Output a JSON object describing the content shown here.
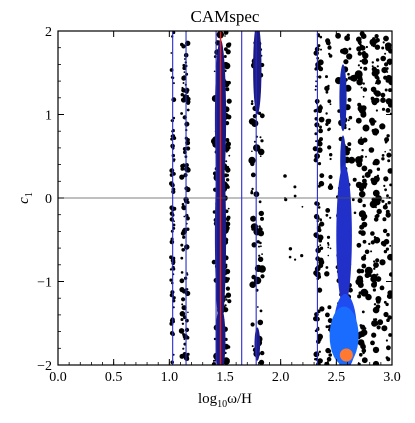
{
  "chart_data": {
    "type": "scatter",
    "title": "CAMspec",
    "xlabel_parts": {
      "pre": "log",
      "sub": "10",
      "post": "ω/H"
    },
    "ylabel_parts": {
      "pre": "c",
      "sub": "1"
    },
    "xlim": [
      0.0,
      3.0
    ],
    "ylim": [
      -2,
      2
    ],
    "xticks": [
      0.0,
      0.5,
      1.0,
      1.5,
      2.0,
      2.5,
      3.0
    ],
    "xtick_labels": [
      "0.0",
      "0.5",
      "1.0",
      "1.5",
      "2.0",
      "2.5",
      "3.0"
    ],
    "yticks": [
      -2,
      -1,
      0,
      1,
      2
    ],
    "ytick_labels": [
      "−2",
      "−1",
      "0",
      "1",
      "2"
    ],
    "zero_line_y": 0,
    "best_fit_x": 1.46,
    "blue_lines_x": [
      1.03,
      1.15,
      1.42,
      1.65,
      1.78,
      2.33
    ],
    "colors": {
      "blue_line": "#2a2ad0",
      "red_line": "#e02020",
      "marker": "#ff7a30",
      "frame": "#000000"
    },
    "marker": {
      "x": 2.59,
      "y": -1.88
    },
    "blobs": [
      {
        "x": 1.46,
        "y": 0.95,
        "w": 0.1,
        "h": 1.9,
        "color": "#1a1a80"
      },
      {
        "x": 1.46,
        "y": -0.45,
        "w": 0.1,
        "h": 2.2,
        "color": "#1a1a80"
      },
      {
        "x": 1.46,
        "y": -1.7,
        "w": 0.09,
        "h": 0.8,
        "color": "#1a1a80"
      },
      {
        "x": 1.79,
        "y": 1.55,
        "w": 0.075,
        "h": 1.1,
        "color": "#1a1a80"
      },
      {
        "x": 1.79,
        "y": -1.75,
        "w": 0.05,
        "h": 0.4,
        "color": "#1a1a80"
      },
      {
        "x": 2.56,
        "y": 1.2,
        "w": 0.065,
        "h": 0.8,
        "color": "#1a2ab0"
      },
      {
        "x": 2.56,
        "y": 0.45,
        "w": 0.05,
        "h": 0.6,
        "color": "#1a2ab0"
      },
      {
        "x": 2.57,
        "y": -0.45,
        "w": 0.14,
        "h": 1.7,
        "color": "#2030c8"
      },
      {
        "x": 2.58,
        "y": -1.6,
        "w": 0.21,
        "h": 0.9,
        "color": "#1e4cf0"
      },
      {
        "x": 2.57,
        "y": -1.65,
        "w": 0.26,
        "h": 0.7,
        "color": "#1a6cff"
      }
    ],
    "stripes": [
      {
        "x": 1.03,
        "spread": 0.015,
        "density": 70,
        "size": 1.6
      },
      {
        "x": 1.14,
        "spread": 0.03,
        "density": 120,
        "size": 2.0
      },
      {
        "x": 1.46,
        "spread": 0.06,
        "density": 90,
        "size": 3.0
      },
      {
        "x": 1.52,
        "spread": 0.02,
        "density": 60,
        "size": 2.0
      },
      {
        "x": 1.79,
        "spread": 0.05,
        "density": 80,
        "size": 3.0
      },
      {
        "x": 2.34,
        "spread": 0.03,
        "density": 110,
        "size": 2.2
      },
      {
        "x": 2.43,
        "spread": 0.02,
        "density": 50,
        "size": 2.0
      },
      {
        "x": 2.57,
        "spread": 0.06,
        "density": 90,
        "size": 2.8
      },
      {
        "x": 2.73,
        "spread": 0.03,
        "density": 90,
        "size": 2.6
      },
      {
        "x": 2.85,
        "spread": 0.03,
        "density": 80,
        "size": 2.6
      },
      {
        "x": 2.95,
        "spread": 0.04,
        "density": 70,
        "size": 2.4
      }
    ]
  }
}
